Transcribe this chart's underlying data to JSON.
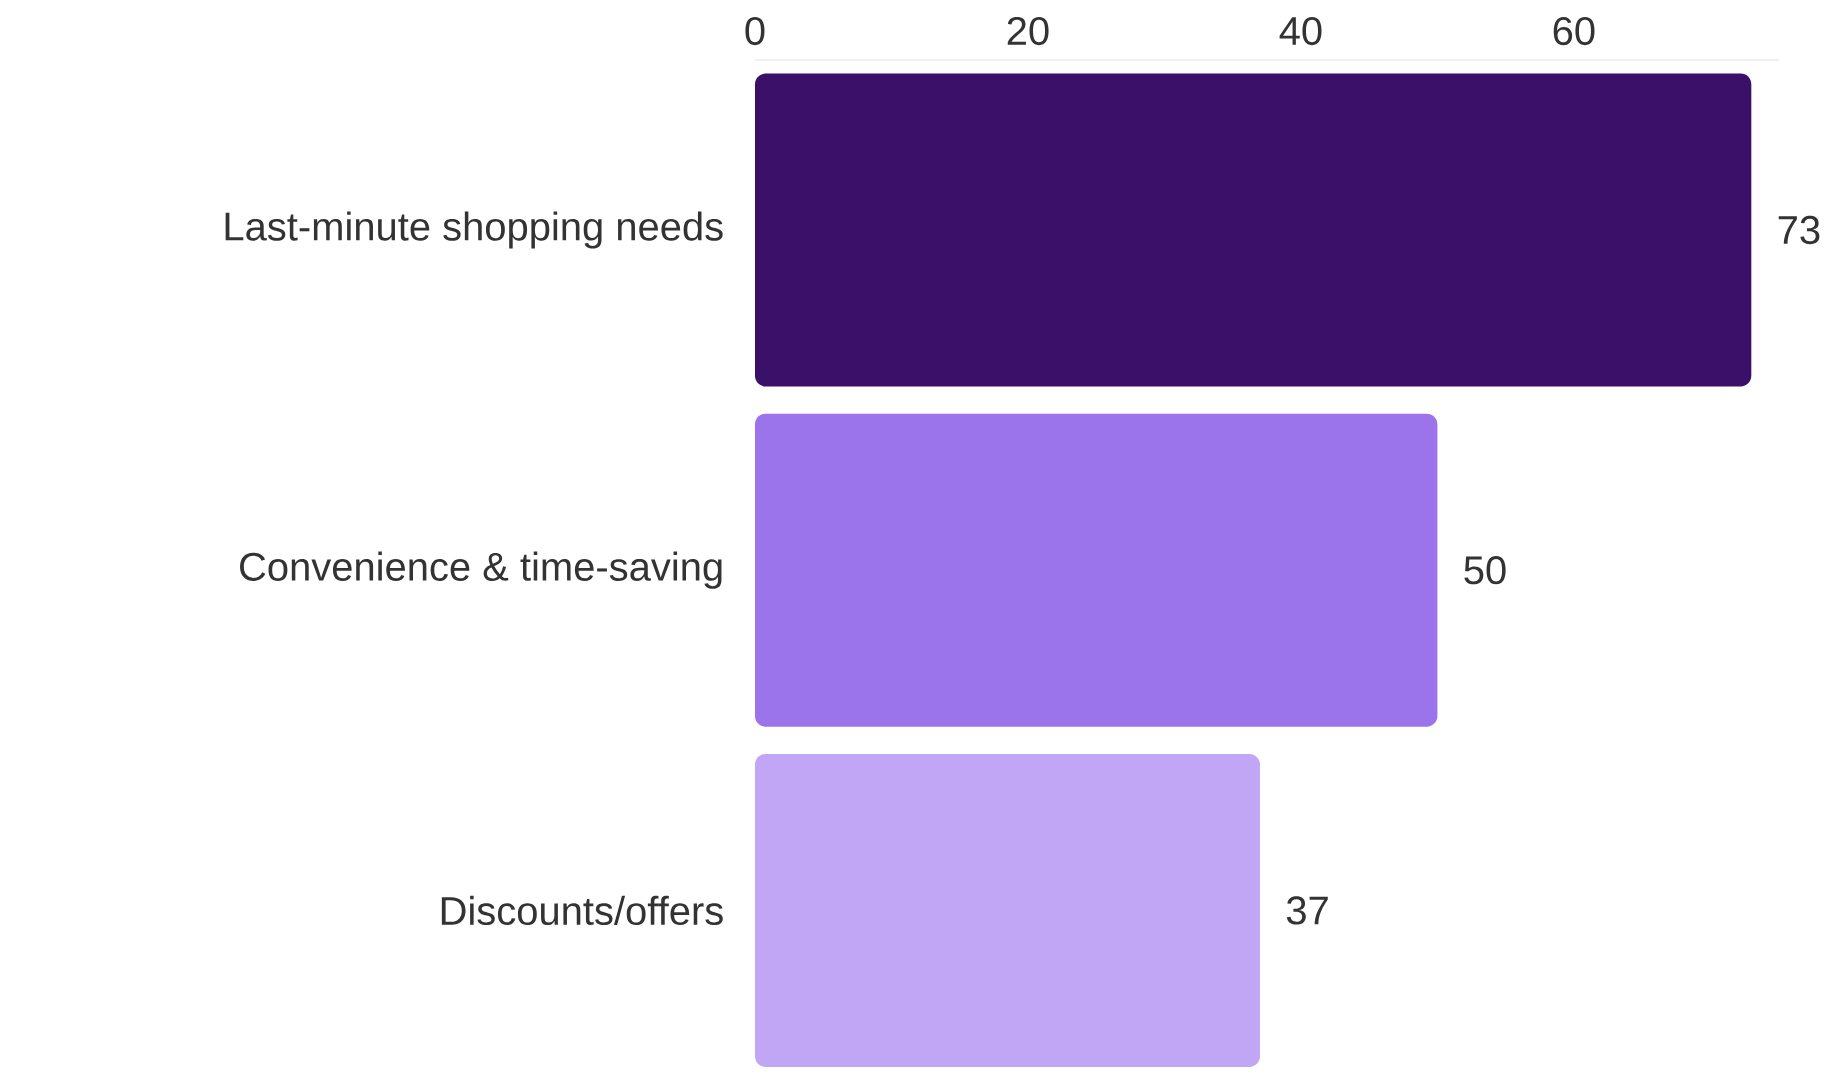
{
  "chart_data": {
    "type": "bar",
    "orientation": "horizontal",
    "categories": [
      "Last-minute shopping needs",
      "Convenience & time-saving",
      "Discounts/offers"
    ],
    "values": [
      73,
      50,
      37
    ],
    "colors": [
      "#3a1068",
      "#9b74ec",
      "#c0a6f5"
    ],
    "xlim": [
      0,
      75
    ],
    "xticks": [
      0,
      20,
      40,
      60
    ],
    "data_labels": true,
    "grid": false
  }
}
